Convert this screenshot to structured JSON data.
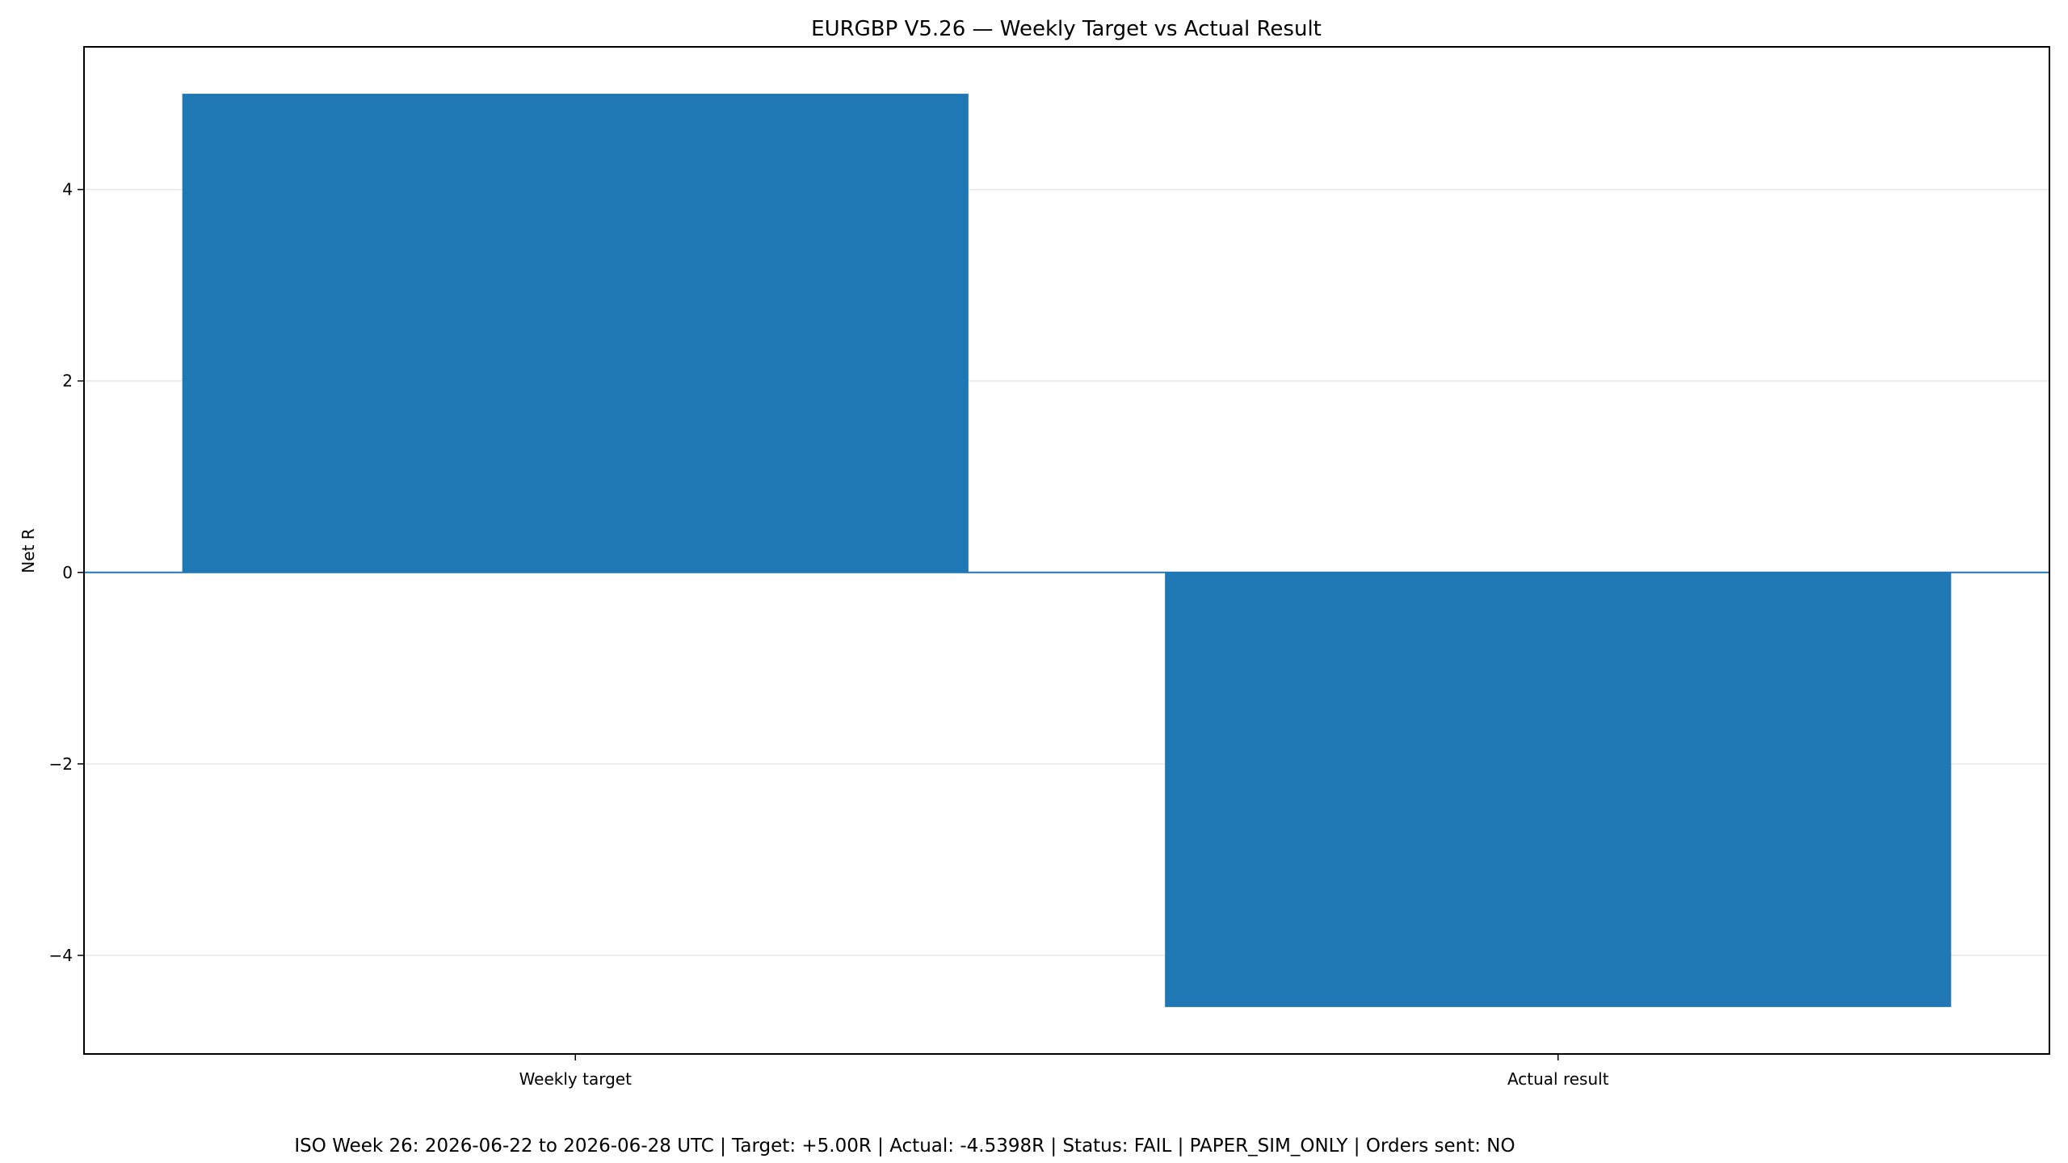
{
  "chart_data": {
    "type": "bar",
    "title": "EURGBP V5.26 — Weekly Target vs Actual Result",
    "categories": [
      "Weekly target",
      "Actual result"
    ],
    "values": [
      5.0,
      -4.5398
    ],
    "xlabel": "",
    "ylabel": "Net R",
    "ylim": [
      -5.03,
      5.49
    ],
    "yticks": [
      4,
      2,
      0,
      -2,
      -4
    ],
    "ytick_labels": [
      "4",
      "2",
      "0",
      "−2",
      "−4"
    ],
    "grid": true,
    "zero_line": true,
    "bar_color": "#1f77b4",
    "footnote": "ISO Week 26: 2026-06-22 to 2026-06-28 UTC | Target: +5.00R | Actual: -4.5398R | Status: FAIL | PAPER_SIM_ONLY | Orders sent: NO"
  }
}
